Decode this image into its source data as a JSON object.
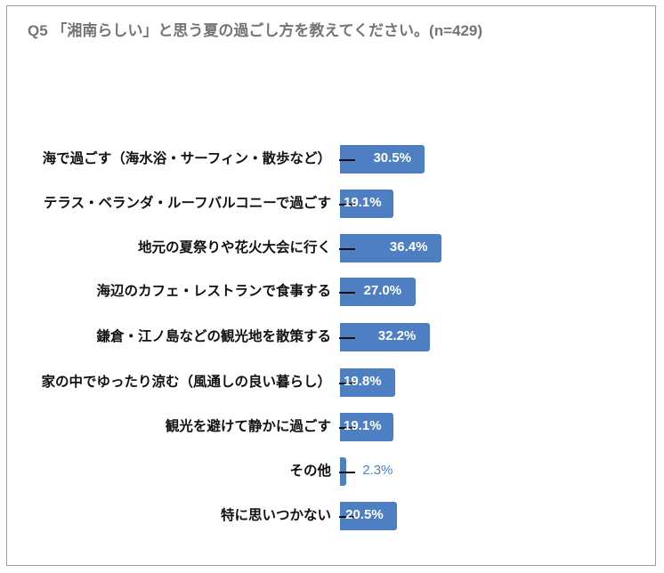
{
  "chart_data": {
    "type": "bar",
    "orientation": "horizontal",
    "title": "Q5 「湘南らしい」と思う夏の過ごし方を教えてください。(n=429)",
    "categories": [
      "海で過ごす（海水浴・サーフィン・散歩など）",
      "テラス・ベランダ・ルーフバルコニーで過ごす",
      "地元の夏祭りや花火大会に行く",
      "海辺のカフェ・レストランで食事する",
      "鎌倉・江ノ島などの観光地を散策する",
      "家の中でゆったり涼む（風通しの良い暮らし）",
      "観光を避けて静かに過ごす",
      "その他",
      "特に思いつかない"
    ],
    "values": [
      30.5,
      19.1,
      36.4,
      27.0,
      32.2,
      19.8,
      19.1,
      2.3,
      20.5
    ],
    "value_labels": [
      "30.5%",
      "19.1%",
      "36.4%",
      "27.0%",
      "32.2%",
      "19.8%",
      "19.1%",
      "2.3%",
      "20.5%"
    ],
    "unit": "%",
    "grid": false,
    "bar_color": "#4e7fc2",
    "title_color": "#757575"
  }
}
